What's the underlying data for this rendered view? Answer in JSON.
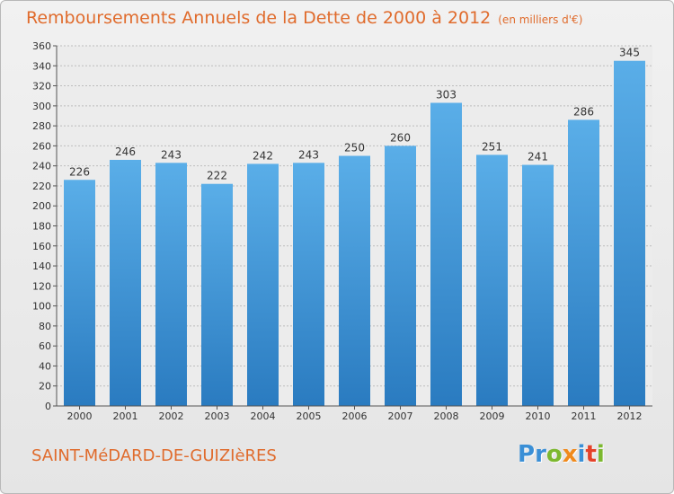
{
  "header": {
    "title": "Remboursements Annuels de la Dette de 2000 à 2012",
    "unit": "(en milliers d'€)"
  },
  "footer": {
    "commune": "SAINT-MéDARD-DE-GUIZIèRES",
    "logo_letters": [
      "P",
      "r",
      "o",
      "x",
      "i",
      "t",
      "i"
    ],
    "logo_colors": [
      "#3a8fd6",
      "#3a8fd6",
      "#7cb82f",
      "#f08a1c",
      "#3a8fd6",
      "#e4422a",
      "#7cb82f"
    ]
  },
  "colors": {
    "title": "#e06b2c",
    "bar_top": "#5aaee8",
    "bar_bottom": "#2a7bc0",
    "grid": "#bdbdbd"
  },
  "chart_data": {
    "type": "bar",
    "categories": [
      "2000",
      "2001",
      "2002",
      "2003",
      "2004",
      "2005",
      "2006",
      "2007",
      "2008",
      "2009",
      "2010",
      "2011",
      "2012"
    ],
    "values": [
      226,
      246,
      243,
      222,
      242,
      243,
      250,
      260,
      303,
      251,
      241,
      286,
      345
    ],
    "ylim": [
      0,
      360
    ],
    "yticks": [
      0,
      20,
      40,
      60,
      80,
      100,
      120,
      140,
      160,
      180,
      200,
      220,
      240,
      260,
      280,
      300,
      320,
      340,
      360
    ],
    "grid": true,
    "data_labels": true
  }
}
